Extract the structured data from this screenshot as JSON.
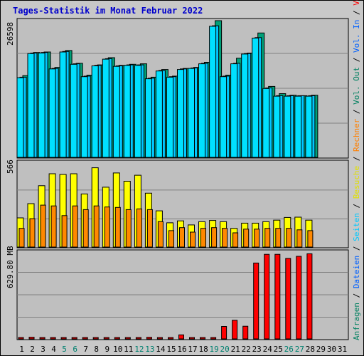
{
  "title": "Tages-Statistik im Monat Februar 2022",
  "colors": {
    "background": "#c8c8c8",
    "plot_bg": "#bfbfbf",
    "title": "#0000cc",
    "anfragen": "#00a078",
    "dateien": "#00c8ff",
    "seiten": "#00e0ff",
    "besuche": "#ffff00",
    "rechner": "#ff8800",
    "volumen": "#ff0000",
    "weekend_label": "#00806f",
    "label_text": "#000000"
  },
  "right_axis_labels": [
    {
      "text": "Anfragen",
      "color": "#008060"
    },
    {
      "text": " / ",
      "color": "#000000"
    },
    {
      "text": "Dateien",
      "color": "#0060ff"
    },
    {
      "text": " / ",
      "color": "#000000"
    },
    {
      "text": "Seiten",
      "color": "#00c8ff"
    },
    {
      "text": " / ",
      "color": "#000000"
    },
    {
      "text": "Besuche",
      "color": "#e0e000"
    },
    {
      "text": " / ",
      "color": "#000000"
    },
    {
      "text": "Rechner",
      "color": "#ff8000"
    },
    {
      "text": " / ",
      "color": "#000000"
    },
    {
      "text": "Vol. Out",
      "color": "#008060"
    },
    {
      "text": " / ",
      "color": "#000000"
    },
    {
      "text": "Vol. In",
      "color": "#0060ff"
    },
    {
      "text": " / ",
      "color": "#000000"
    },
    {
      "text": "Volumen",
      "color": "#ff0000"
    }
  ],
  "chart_data": [
    {
      "type": "bar",
      "panel": "top",
      "ymax_label": "26598",
      "ylim": [
        0,
        26598
      ],
      "categories": [
        "1",
        "2",
        "3",
        "4",
        "5",
        "6",
        "7",
        "8",
        "9",
        "10",
        "11",
        "12",
        "13",
        "14",
        "15",
        "16",
        "17",
        "18",
        "19",
        "20",
        "21",
        "22",
        "23",
        "24",
        "25",
        "26",
        "27",
        "28",
        "29",
        "30",
        "31"
      ],
      "series": [
        {
          "name": "Anfragen",
          "values": [
            15900,
            20400,
            20500,
            17500,
            20800,
            18300,
            16000,
            18000,
            19400,
            17900,
            18100,
            18200,
            15600,
            17100,
            15800,
            17300,
            17500,
            18500,
            26600,
            16000,
            19300,
            20300,
            24200,
            13800,
            12400,
            12100,
            12000,
            12100,
            0,
            0,
            0
          ]
        },
        {
          "name": "Dateien",
          "values": [
            15600,
            20300,
            20400,
            17300,
            20600,
            18200,
            15800,
            17900,
            19200,
            17800,
            18000,
            18000,
            15400,
            16900,
            15700,
            17200,
            17400,
            18300,
            25600,
            15800,
            18300,
            20200,
            23300,
            13500,
            12000,
            12000,
            12000,
            12000,
            0,
            0,
            0
          ]
        },
        {
          "name": "Seiten",
          "values": [
            15500,
            20200,
            20300,
            17200,
            20500,
            18100,
            15700,
            17800,
            19100,
            17700,
            17900,
            17900,
            15300,
            16800,
            15600,
            17100,
            17300,
            18200,
            25500,
            15700,
            18200,
            20100,
            23200,
            13400,
            11900,
            11900,
            11900,
            11900,
            0,
            0,
            0
          ]
        }
      ]
    },
    {
      "type": "bar",
      "panel": "middle",
      "ymax_label": "566",
      "ylim": [
        0,
        566
      ],
      "categories": [
        "1",
        "2",
        "3",
        "4",
        "5",
        "6",
        "7",
        "8",
        "9",
        "10",
        "11",
        "12",
        "13",
        "14",
        "15",
        "16",
        "17",
        "18",
        "19",
        "20",
        "21",
        "22",
        "23",
        "24",
        "25",
        "26",
        "27",
        "28",
        "29",
        "30",
        "31"
      ],
      "series": [
        {
          "name": "Besuche",
          "values": [
            195,
            290,
            410,
            490,
            485,
            490,
            355,
            530,
            400,
            495,
            440,
            480,
            360,
            242,
            162,
            175,
            148,
            170,
            178,
            170,
            125,
            160,
            160,
            170,
            180,
            198,
            200,
            180,
            0,
            0,
            0
          ]
        },
        {
          "name": "Rechner",
          "values": [
            125,
            190,
            280,
            275,
            210,
            275,
            250,
            275,
            268,
            265,
            250,
            255,
            250,
            170,
            110,
            130,
            100,
            125,
            130,
            125,
            95,
            120,
            120,
            125,
            125,
            125,
            115,
            110,
            0,
            0,
            0
          ]
        }
      ]
    },
    {
      "type": "bar",
      "panel": "bottom",
      "ymax_label": "629.80 MB",
      "ylim": [
        0,
        755
      ],
      "categories": [
        "1",
        "2",
        "3",
        "4",
        "5",
        "6",
        "7",
        "8",
        "9",
        "10",
        "11",
        "12",
        "13",
        "14",
        "15",
        "16",
        "17",
        "18",
        "19",
        "20",
        "21",
        "22",
        "23",
        "24",
        "25",
        "26",
        "27",
        "28",
        "29",
        "30",
        "31"
      ],
      "series": [
        {
          "name": "Volumen",
          "values": [
            5,
            15,
            12,
            8,
            6,
            6,
            6,
            6,
            6,
            6,
            6,
            6,
            14,
            6,
            6,
            35,
            6,
            6,
            8,
            108,
            162,
            110,
            660,
            735,
            735,
            700,
            718,
            740,
            0,
            0,
            0
          ]
        }
      ]
    }
  ],
  "x_labels": [
    {
      "text": "1",
      "weekend": false
    },
    {
      "text": "2",
      "weekend": false
    },
    {
      "text": "3",
      "weekend": false
    },
    {
      "text": "4",
      "weekend": false
    },
    {
      "text": "5",
      "weekend": true
    },
    {
      "text": "6",
      "weekend": true
    },
    {
      "text": "7",
      "weekend": false
    },
    {
      "text": "8",
      "weekend": false
    },
    {
      "text": "9",
      "weekend": false
    },
    {
      "text": "10",
      "weekend": false
    },
    {
      "text": "11",
      "weekend": false
    },
    {
      "text": "12",
      "weekend": true
    },
    {
      "text": "13",
      "weekend": true
    },
    {
      "text": "14",
      "weekend": false
    },
    {
      "text": "15",
      "weekend": false
    },
    {
      "text": "16",
      "weekend": false
    },
    {
      "text": "17",
      "weekend": false
    },
    {
      "text": "18",
      "weekend": false
    },
    {
      "text": "19",
      "weekend": true
    },
    {
      "text": "20",
      "weekend": true
    },
    {
      "text": "21",
      "weekend": false
    },
    {
      "text": "22",
      "weekend": false
    },
    {
      "text": "23",
      "weekend": false
    },
    {
      "text": "24",
      "weekend": false
    },
    {
      "text": "25",
      "weekend": false
    },
    {
      "text": "26",
      "weekend": true
    },
    {
      "text": "27",
      "weekend": true
    },
    {
      "text": "28",
      "weekend": false
    },
    {
      "text": "29",
      "weekend": false
    },
    {
      "text": "30",
      "weekend": false
    },
    {
      "text": "31",
      "weekend": false
    }
  ]
}
